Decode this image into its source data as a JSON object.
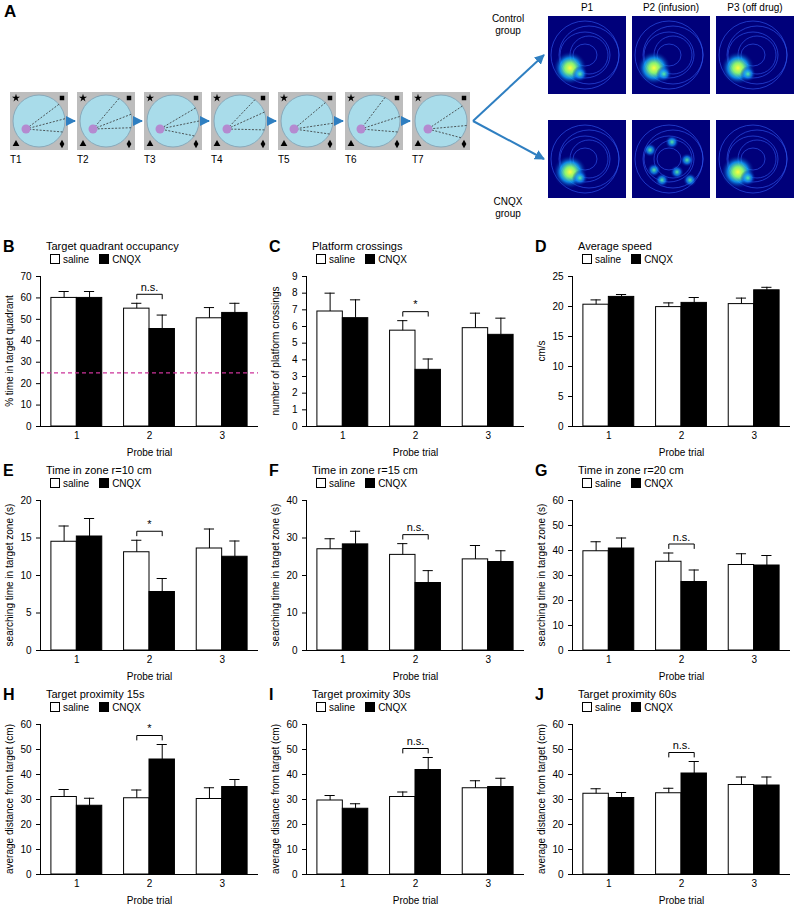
{
  "diagram": {
    "panel": "A",
    "trials": [
      "T1",
      "T2",
      "T3",
      "T4",
      "T5",
      "T6",
      "T7"
    ],
    "groups": [
      "Control group",
      "CNQX group"
    ],
    "probes": [
      "P1",
      "P2 (infusion)",
      "P3 (off drug)"
    ]
  },
  "chart_data": [
    {
      "panel": "B",
      "type": "bar",
      "title": "Target quadrant occupancy",
      "categories": [
        "1",
        "2",
        "3"
      ],
      "xlabel": "Probe trial",
      "ylabel": "% time in target quadrant",
      "ylim": [
        0,
        70
      ],
      "yticks": [
        0,
        10,
        20,
        30,
        40,
        50,
        60,
        70
      ],
      "legend": "top-left",
      "series": [
        {
          "name": "saline",
          "color": "#ffffff",
          "values": [
            60,
            55,
            50.5
          ],
          "errors": [
            3,
            2.5,
            5
          ]
        },
        {
          "name": "CNQX",
          "color": "#000000",
          "values": [
            60,
            45.5,
            53
          ],
          "errors": [
            3,
            6.5,
            4.5
          ]
        }
      ],
      "annotations": [
        {
          "category": "2",
          "label": "n.s."
        }
      ],
      "reference_line": {
        "value": 25,
        "color": "#cc3399",
        "line_style": "dashed"
      }
    },
    {
      "panel": "C",
      "type": "bar",
      "title": "Platform crossings",
      "categories": [
        "1",
        "2",
        "3"
      ],
      "xlabel": "Probe trial",
      "ylabel": "number of platform crossings",
      "ylim": [
        0,
        9
      ],
      "yticks": [
        0,
        1,
        2,
        3,
        4,
        5,
        6,
        7,
        8,
        9
      ],
      "legend": "top-left",
      "series": [
        {
          "name": "saline",
          "color": "#ffffff",
          "values": [
            6.9,
            5.75,
            5.9
          ],
          "errors": [
            1.1,
            0.6,
            0.9
          ]
        },
        {
          "name": "CNQX",
          "color": "#000000",
          "values": [
            6.5,
            3.4,
            5.5
          ],
          "errors": [
            1.1,
            0.65,
            1.0
          ]
        }
      ],
      "annotations": [
        {
          "category": "2",
          "label": "*"
        }
      ]
    },
    {
      "panel": "D",
      "type": "bar",
      "title": "Average speed",
      "categories": [
        "1",
        "2",
        "3"
      ],
      "xlabel": "Probe trial",
      "ylabel": "cm/s",
      "ylim": [
        0,
        25
      ],
      "yticks": [
        0,
        5,
        10,
        15,
        20,
        25
      ],
      "legend": "top-left",
      "series": [
        {
          "name": "saline",
          "color": "#ffffff",
          "values": [
            20.3,
            19.9,
            20.4
          ],
          "errors": [
            0.8,
            0.7,
            1.0
          ]
        },
        {
          "name": "CNQX",
          "color": "#000000",
          "values": [
            21.6,
            20.6,
            22.7
          ],
          "errors": [
            0.4,
            0.9,
            0.5
          ]
        }
      ]
    },
    {
      "panel": "E",
      "type": "bar",
      "title": "Time in zone r=10 cm",
      "categories": [
        "1",
        "2",
        "3"
      ],
      "xlabel": "Probe trial",
      "ylabel": "searching time in target zone (s)",
      "ylim": [
        0,
        20
      ],
      "yticks": [
        0,
        5,
        10,
        15,
        20
      ],
      "legend": "top-left",
      "series": [
        {
          "name": "saline",
          "color": "#ffffff",
          "values": [
            14.5,
            13.1,
            13.6
          ],
          "errors": [
            2.1,
            1.6,
            2.6
          ]
        },
        {
          "name": "CNQX",
          "color": "#000000",
          "values": [
            15.2,
            7.8,
            12.5
          ],
          "errors": [
            2.4,
            1.8,
            2.1
          ]
        }
      ],
      "annotations": [
        {
          "category": "2",
          "label": "*"
        }
      ]
    },
    {
      "panel": "F",
      "type": "bar",
      "title": "Time in zone r=15 cm",
      "categories": [
        "1",
        "2",
        "3"
      ],
      "xlabel": "Probe trial",
      "ylabel": "searching time in target zone (s)",
      "ylim": [
        0,
        40
      ],
      "yticks": [
        0,
        10,
        20,
        30,
        40
      ],
      "legend": "top-left",
      "series": [
        {
          "name": "saline",
          "color": "#ffffff",
          "values": [
            27,
            25.5,
            24.3
          ],
          "errors": [
            2.8,
            3,
            3.7
          ]
        },
        {
          "name": "CNQX",
          "color": "#000000",
          "values": [
            28.3,
            18,
            23.6
          ],
          "errors": [
            3.5,
            3.3,
            3
          ]
        }
      ],
      "annotations": [
        {
          "category": "2",
          "label": "n.s."
        }
      ]
    },
    {
      "panel": "G",
      "type": "bar",
      "title": "Time in zone r=20 cm",
      "categories": [
        "1",
        "2",
        "3"
      ],
      "xlabel": "Probe trial",
      "ylabel": "searching time in target zone (s)",
      "ylim": [
        0,
        60
      ],
      "yticks": [
        0,
        10,
        20,
        30,
        40,
        50,
        60
      ],
      "legend": "top-left",
      "series": [
        {
          "name": "saline",
          "color": "#ffffff",
          "values": [
            39.7,
            35.5,
            34.2
          ],
          "errors": [
            3.8,
            3.5,
            4.5
          ]
        },
        {
          "name": "CNQX",
          "color": "#000000",
          "values": [
            40.8,
            27.4,
            34
          ],
          "errors": [
            4.2,
            4.8,
            4
          ]
        }
      ],
      "annotations": [
        {
          "category": "2",
          "label": "n.s."
        }
      ]
    },
    {
      "panel": "H",
      "type": "bar",
      "title": "Target proximity 15s",
      "categories": [
        "1",
        "2",
        "3"
      ],
      "xlabel": "Probe trial",
      "ylabel": "average distance from target (cm)",
      "ylim": [
        0,
        60
      ],
      "yticks": [
        0,
        10,
        20,
        30,
        40,
        50,
        60
      ],
      "legend": "top-left",
      "series": [
        {
          "name": "saline",
          "color": "#ffffff",
          "values": [
            31,
            30.5,
            30.2
          ],
          "errors": [
            3,
            3.3,
            4.5
          ]
        },
        {
          "name": "CNQX",
          "color": "#000000",
          "values": [
            27.5,
            46,
            35
          ],
          "errors": [
            3,
            6,
            3
          ]
        }
      ],
      "annotations": [
        {
          "category": "2",
          "label": "*"
        }
      ]
    },
    {
      "panel": "I",
      "type": "bar",
      "title": "Target proximity 30s",
      "categories": [
        "1",
        "2",
        "3"
      ],
      "xlabel": "Probe trial",
      "ylabel": "average distance from target (cm)",
      "ylim": [
        0,
        60
      ],
      "yticks": [
        0,
        10,
        20,
        30,
        40,
        50,
        60
      ],
      "legend": "top-left",
      "series": [
        {
          "name": "saline",
          "color": "#ffffff",
          "values": [
            29.6,
            31,
            34.5
          ],
          "errors": [
            2,
            2,
            3
          ]
        },
        {
          "name": "CNQX",
          "color": "#000000",
          "values": [
            26.3,
            41.8,
            35
          ],
          "errors": [
            2,
            5,
            3.5
          ]
        }
      ],
      "annotations": [
        {
          "category": "2",
          "label": "n.s."
        }
      ]
    },
    {
      "panel": "J",
      "type": "bar",
      "title": "Target proximity 60s",
      "categories": [
        "1",
        "2",
        "3"
      ],
      "xlabel": "Probe trial",
      "ylabel": "average distance from target (cm)",
      "ylim": [
        0,
        60
      ],
      "yticks": [
        0,
        10,
        20,
        30,
        40,
        50,
        60
      ],
      "legend": "top-left",
      "series": [
        {
          "name": "saline",
          "color": "#ffffff",
          "values": [
            32.3,
            32.5,
            35.8
          ],
          "errors": [
            2,
            2,
            3.2
          ]
        },
        {
          "name": "CNQX",
          "color": "#000000",
          "values": [
            30.6,
            40.4,
            35.6
          ],
          "errors": [
            2.2,
            4.8,
            3.4
          ]
        }
      ],
      "annotations": [
        {
          "category": "2",
          "label": "n.s."
        }
      ]
    }
  ]
}
